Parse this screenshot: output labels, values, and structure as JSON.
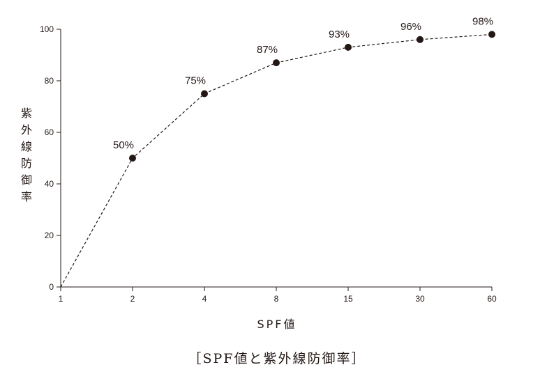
{
  "chart_data": {
    "type": "line",
    "title": "",
    "caption": "［SPF値と紫外線防御率］",
    "xlabel": "SPF値",
    "ylabel": "紫外線防御率",
    "categories": [
      "1",
      "2",
      "4",
      "8",
      "15",
      "30",
      "60"
    ],
    "series": [
      {
        "values": [
          0,
          50,
          75,
          87,
          93,
          96,
          98
        ],
        "labels": [
          "",
          "50%",
          "75%",
          "87%",
          "93%",
          "96%",
          "98%"
        ]
      }
    ],
    "ylim": [
      0,
      100
    ],
    "yticks": [
      0,
      20,
      40,
      60,
      80,
      100
    ],
    "grid": false,
    "line_style": "dashed",
    "colors": {
      "line": "#231815",
      "marker": "#231815",
      "axis": "#231815"
    }
  }
}
